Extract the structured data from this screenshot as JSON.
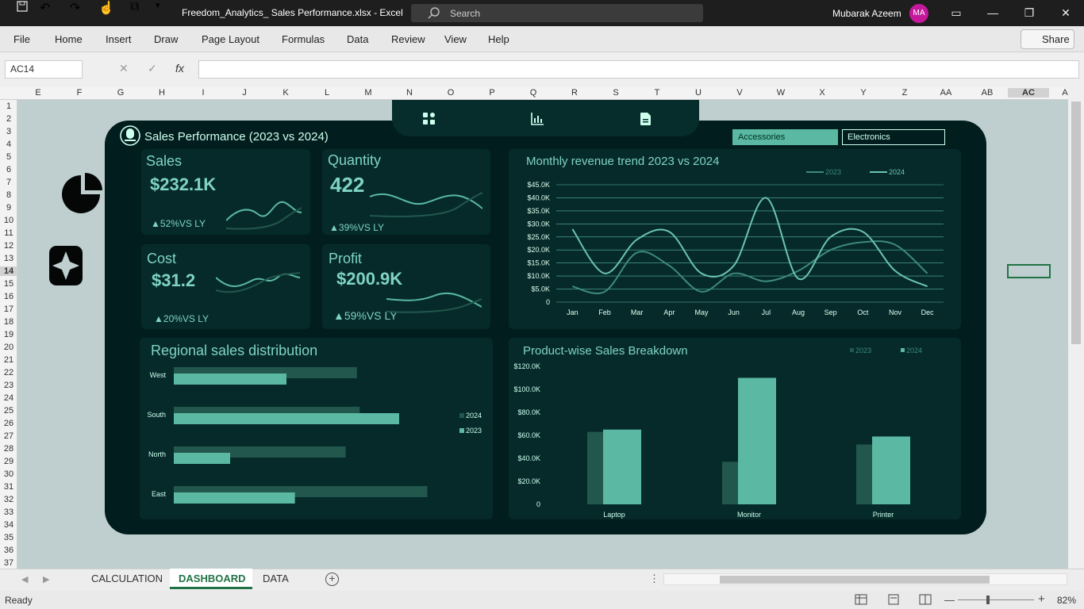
{
  "titlebar": {
    "doc_title": "Freedom_Analytics_ Sales Performance.xlsx  -  Excel",
    "search_placeholder": "Search",
    "user": "Mubarak Azeem",
    "initials": "MA"
  },
  "menu": [
    "File",
    "Home",
    "Insert",
    "Draw",
    "Page Layout",
    "Formulas",
    "Data",
    "Review",
    "View",
    "Help"
  ],
  "share_label": "Share",
  "name_box": "AC14",
  "fx": "fx",
  "columns": [
    "E",
    "F",
    "G",
    "H",
    "I",
    "J",
    "K",
    "L",
    "M",
    "N",
    "O",
    "P",
    "Q",
    "R",
    "S",
    "T",
    "U",
    "V",
    "W",
    "X",
    "Y",
    "Z",
    "AA",
    "AB",
    "AC",
    "A"
  ],
  "rows": [
    "1",
    "2",
    "3",
    "4",
    "5",
    "6",
    "7",
    "8",
    "9",
    "10",
    "11",
    "12",
    "13",
    "14",
    "15",
    "16",
    "17",
    "18",
    "19",
    "20",
    "21",
    "22",
    "23",
    "24",
    "25",
    "26",
    "27",
    "28",
    "29",
    "30",
    "31",
    "32",
    "33",
    "34",
    "35",
    "36",
    "37"
  ],
  "sheets": {
    "tabs": [
      "CALCULATION",
      "DASHBOARD",
      "DATA"
    ],
    "active": "DASHBOARD"
  },
  "status": {
    "ready": "Ready",
    "zoom": "82%"
  },
  "dashboard": {
    "title": "Sales Performance (2023 vs 2024)",
    "slicers": [
      "Accessories",
      "Electronics"
    ],
    "kpis": {
      "sales": {
        "label": "Sales",
        "value": "$232.1K",
        "change": "52%VS LY"
      },
      "quantity": {
        "label": "Quantity",
        "value": "422",
        "change": "39%VS LY"
      },
      "cost": {
        "label": "Cost",
        "value": "$31.2",
        "change": "20%VS LY"
      },
      "profit": {
        "label": "Profit",
        "value": "$200.9K",
        "change": "59%VS LY"
      }
    },
    "colors": {
      "bg": "#021d1d",
      "panel": "#062a2a",
      "accent": "#5ab8a3",
      "dark_series": "#22574d"
    }
  },
  "chart_data": [
    {
      "type": "line",
      "title": "Monthly revenue trend 2023 vs 2024",
      "categories": [
        "Jan",
        "Feb",
        "Mar",
        "Apr",
        "May",
        "Jun",
        "Jul",
        "Aug",
        "Sep",
        "Oct",
        "Nov",
        "Dec"
      ],
      "ylim": [
        0,
        45000
      ],
      "yticks": [
        "0",
        "$5.0K",
        "$10.0K",
        "$15.0K",
        "$20.0K",
        "$25.0K",
        "$30.0K",
        "$35.0K",
        "$40.0K",
        "$45.0K"
      ],
      "legend": "top-right",
      "series": [
        {
          "name": "2023",
          "values": [
            6000,
            4000,
            19000,
            14000,
            4000,
            11000,
            8000,
            12000,
            20000,
            23000,
            22000,
            11000
          ]
        },
        {
          "name": "2024",
          "values": [
            28000,
            11000,
            24000,
            27000,
            11000,
            14000,
            40000,
            9000,
            25000,
            27000,
            12000,
            6000
          ]
        }
      ]
    },
    {
      "type": "bar",
      "title": "Regional sales distribution",
      "orientation": "horizontal",
      "categories": [
        "West",
        "South",
        "North",
        "East"
      ],
      "legend": "right",
      "series": [
        {
          "name": "2024",
          "values": [
            65,
            66,
            61,
            90
          ]
        },
        {
          "name": "2023",
          "values": [
            40,
            80,
            20,
            43
          ]
        }
      ]
    },
    {
      "type": "bar",
      "title": "Product-wise Sales Breakdown",
      "categories": [
        "Laptop",
        "Monitor",
        "Printer"
      ],
      "ylim": [
        0,
        120000
      ],
      "yticks": [
        "0",
        "$20.0K",
        "$40.0K",
        "$60.0K",
        "$80.0K",
        "$100.0K",
        "$120.0K"
      ],
      "legend": "top-right",
      "series": [
        {
          "name": "2023",
          "values": [
            63000,
            37000,
            52000
          ]
        },
        {
          "name": "2024",
          "values": [
            65000,
            110000,
            59000
          ]
        }
      ]
    }
  ]
}
